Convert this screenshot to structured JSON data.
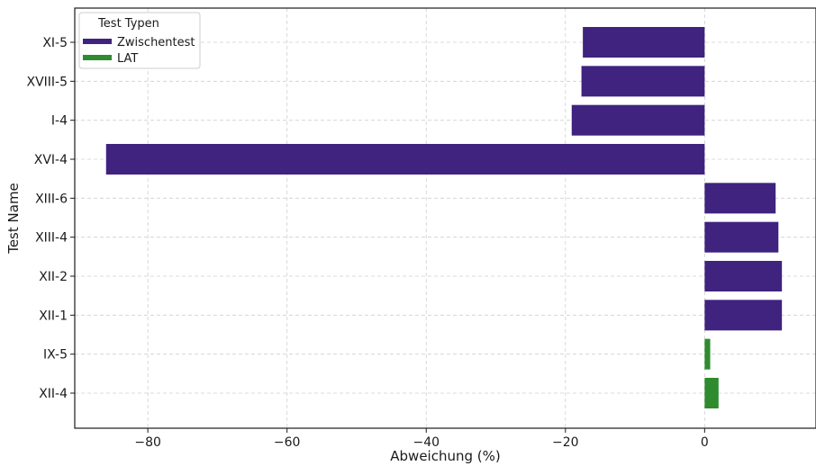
{
  "chart_data": {
    "type": "bar",
    "orientation": "horizontal",
    "title": "",
    "xlabel": "Abweichung (%)",
    "ylabel": "Test Name",
    "xlim": [
      -90.5,
      16
    ],
    "xticks": [
      -80,
      -60,
      -40,
      -20,
      0
    ],
    "xtick_labels": [
      "−80",
      "−60",
      "−40",
      "−20",
      "0"
    ],
    "grid": true,
    "legend": {
      "title": "Test Typen",
      "placement": "top-left",
      "entries": [
        {
          "label": "Zwischentest",
          "color": "#3f237f"
        },
        {
          "label": "LAT",
          "color": "#2e8b2e"
        }
      ]
    },
    "categories": [
      "XI-5",
      "XVIII-5",
      "I-4",
      "XVI-4",
      "XIII-6",
      "XIII-4",
      "XII-2",
      "XII-1",
      "IX-5",
      "XII-4"
    ],
    "bars": [
      {
        "category": "XI-5",
        "value": -17.5,
        "type": "Zwischentest"
      },
      {
        "category": "XVIII-5",
        "value": -17.7,
        "type": "Zwischentest"
      },
      {
        "category": "I-4",
        "value": -19.1,
        "type": "Zwischentest"
      },
      {
        "category": "XVI-4",
        "value": -86.0,
        "type": "Zwischentest"
      },
      {
        "category": "XIII-6",
        "value": 10.2,
        "type": "Zwischentest"
      },
      {
        "category": "XIII-4",
        "value": 10.6,
        "type": "Zwischentest"
      },
      {
        "category": "XII-2",
        "value": 11.1,
        "type": "Zwischentest"
      },
      {
        "category": "XII-1",
        "value": 11.1,
        "type": "Zwischentest"
      },
      {
        "category": "IX-5",
        "value": 0.8,
        "type": "LAT"
      },
      {
        "category": "XII-4",
        "value": 2.0,
        "type": "LAT"
      }
    ]
  }
}
